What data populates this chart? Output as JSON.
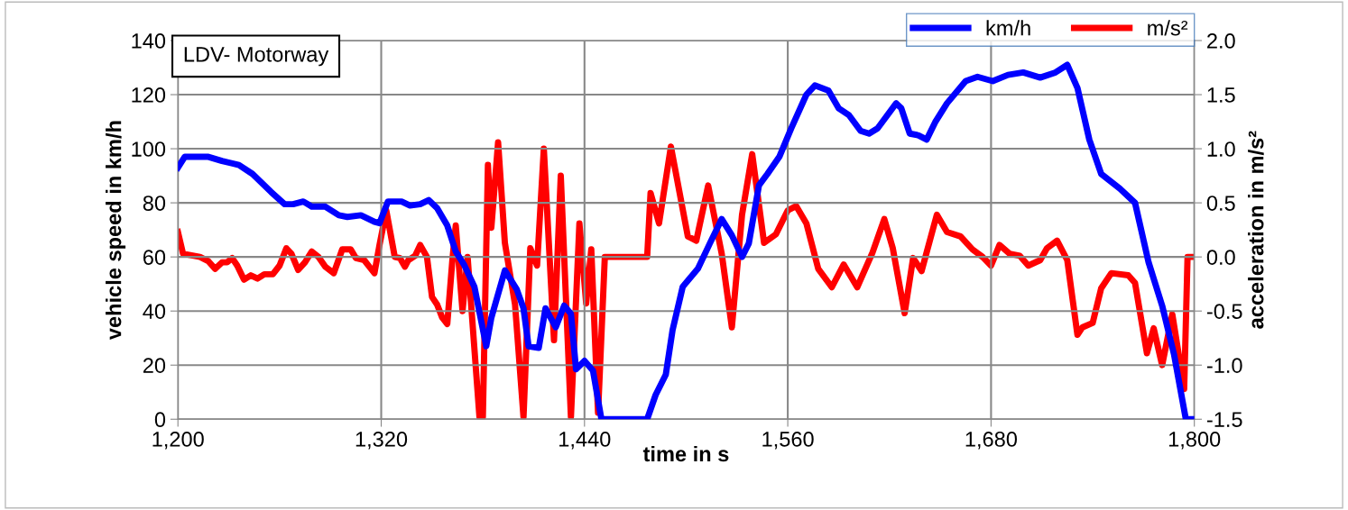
{
  "chart_data": {
    "type": "line",
    "title": "LDV- Motorway",
    "xlabel": "time in s",
    "ylabel": "vehicle speed in km/h",
    "y2label": "acceleration in m/s²",
    "xlim": [
      1200,
      1800
    ],
    "xticks": [
      {
        "value": 1200,
        "label": "1,200"
      },
      {
        "value": 1320,
        "label": "1,320"
      },
      {
        "value": 1440,
        "label": "1,440"
      },
      {
        "value": 1560,
        "label": "1,560"
      },
      {
        "value": 1680,
        "label": "1,680"
      },
      {
        "value": 1800,
        "label": "1,800"
      }
    ],
    "ylim": [
      0,
      140
    ],
    "yticks": [
      0,
      20,
      40,
      60,
      80,
      100,
      120,
      140
    ],
    "y2lim": [
      -1.5,
      2.0
    ],
    "y2ticks": [
      {
        "value": -1.5,
        "label": "-1.5"
      },
      {
        "value": -1.0,
        "label": "-1.0"
      },
      {
        "value": -0.5,
        "label": "-0.5"
      },
      {
        "value": 0.0,
        "label": "0.0"
      },
      {
        "value": 0.5,
        "label": "0.5"
      },
      {
        "value": 1.0,
        "label": "1.0"
      },
      {
        "value": 1.5,
        "label": "1.5"
      },
      {
        "value": 2.0,
        "label": "2.0"
      }
    ],
    "grid": true,
    "legend": "top right",
    "marker": "none",
    "line_style": "solid",
    "series": [
      {
        "name": "km/h",
        "color": "#0000ff",
        "x": [
          1200,
          1204,
          1218,
          1226,
          1236,
          1244,
          1255,
          1263,
          1268,
          1274,
          1279,
          1287,
          1295,
          1300,
          1308,
          1316,
          1319,
          1324,
          1332,
          1337,
          1343,
          1348,
          1353,
          1359,
          1364,
          1369,
          1375,
          1382,
          1385,
          1393,
          1400,
          1404,
          1407,
          1413,
          1417,
          1423,
          1428,
          1432,
          1435,
          1440,
          1445,
          1450,
          1477,
          1482,
          1488,
          1492,
          1498,
          1507,
          1514,
          1521,
          1527,
          1533,
          1537,
          1543,
          1548,
          1555,
          1562,
          1571,
          1576,
          1584,
          1590,
          1596,
          1603,
          1608,
          1613,
          1624,
          1627,
          1632,
          1637,
          1642,
          1647,
          1654,
          1665,
          1672,
          1681,
          1690,
          1699,
          1709,
          1718,
          1725,
          1731,
          1738,
          1745,
          1756,
          1765,
          1773,
          1781,
          1788,
          1795,
          1800
        ],
        "values": [
          93,
          97,
          97,
          95.5,
          94,
          90.7,
          84,
          79.5,
          79.5,
          80.5,
          78.6,
          78.6,
          75.4,
          74.8,
          75.4,
          73,
          72.5,
          80.5,
          80.5,
          79,
          79.5,
          81,
          78,
          71.6,
          62,
          57,
          49,
          27,
          37.5,
          55,
          48,
          41,
          27,
          26.4,
          41,
          34,
          42,
          39,
          18.5,
          21.6,
          18,
          0,
          0,
          9,
          16.5,
          33,
          49,
          55.7,
          65,
          74,
          68,
          60,
          65,
          86.5,
          90.7,
          97,
          107.5,
          120,
          123.4,
          121.5,
          115,
          112.5,
          106.6,
          105.6,
          107.5,
          116.8,
          115,
          105.6,
          105,
          103.4,
          109.8,
          116.8,
          125,
          126.6,
          125,
          127.3,
          128.2,
          126.3,
          128.2,
          131,
          122.5,
          103.4,
          90.7,
          85.3,
          80,
          58,
          42,
          24,
          0,
          0
        ]
      },
      {
        "name": "m/s²",
        "color": "#ff0000",
        "axis": "y2",
        "x": [
          1200,
          1203,
          1213,
          1218,
          1222,
          1226,
          1229,
          1232,
          1235,
          1239,
          1243,
          1247,
          1251,
          1256,
          1260,
          1264,
          1267,
          1271,
          1275,
          1279,
          1283,
          1287,
          1292,
          1297,
          1302,
          1305,
          1310,
          1312,
          1316,
          1319,
          1323,
          1328,
          1331,
          1334,
          1336,
          1340,
          1343,
          1347,
          1350,
          1353,
          1356,
          1359,
          1362,
          1364,
          1368,
          1371,
          1378,
          1380,
          1383,
          1385,
          1389,
          1393,
          1399,
          1404,
          1408,
          1412,
          1416,
          1422,
          1426,
          1432,
          1437,
          1441,
          1444,
          1448,
          1452,
          1477,
          1479,
          1484,
          1491,
          1501,
          1506,
          1513,
          1521,
          1527,
          1533,
          1539,
          1546,
          1553,
          1560,
          1565,
          1571,
          1578,
          1586,
          1593,
          1601,
          1610,
          1617,
          1622,
          1629,
          1634,
          1639,
          1648,
          1654,
          1662,
          1669,
          1675,
          1680,
          1685,
          1691,
          1697,
          1702,
          1709,
          1713,
          1719,
          1725,
          1731,
          1734,
          1740,
          1745,
          1751,
          1761,
          1765,
          1772,
          1776,
          1781,
          1787,
          1794,
          1796,
          1800
        ],
        "values": [
          0.23,
          0.03,
          0.0,
          -0.04,
          -0.11,
          -0.05,
          -0.05,
          -0.01,
          -0.08,
          -0.21,
          -0.17,
          -0.2,
          -0.16,
          -0.16,
          -0.08,
          0.08,
          0.03,
          -0.12,
          -0.05,
          0.05,
          0.0,
          -0.09,
          -0.15,
          0.07,
          0.07,
          -0.01,
          -0.03,
          -0.07,
          -0.15,
          0.11,
          0.43,
          0.0,
          -0.01,
          -0.09,
          -0.03,
          0.01,
          0.11,
          0.0,
          -0.37,
          -0.44,
          -0.56,
          -0.62,
          -0.03,
          0.29,
          -0.5,
          0.0,
          -1.48,
          -1.48,
          0.85,
          0.27,
          1.06,
          0.13,
          -0.44,
          -1.48,
          0.08,
          -0.08,
          1.0,
          -0.77,
          0.75,
          -1.48,
          0.31,
          -0.43,
          0.07,
          -1.44,
          0.0,
          0.0,
          0.59,
          0.31,
          1.02,
          0.19,
          0.15,
          0.66,
          0.03,
          -0.65,
          0.39,
          0.95,
          0.13,
          0.21,
          0.43,
          0.47,
          0.31,
          -0.11,
          -0.28,
          -0.07,
          -0.28,
          0.04,
          0.35,
          0.08,
          -0.52,
          -0.01,
          -0.13,
          0.39,
          0.23,
          0.19,
          0.07,
          0.0,
          -0.08,
          0.11,
          0.03,
          0.01,
          -0.08,
          -0.03,
          0.08,
          0.15,
          -0.03,
          -0.72,
          -0.65,
          -0.61,
          -0.29,
          -0.15,
          -0.17,
          -0.24,
          -0.89,
          -0.66,
          -1.0,
          -0.53,
          -1.22,
          0.0,
          0.0
        ]
      }
    ]
  }
}
